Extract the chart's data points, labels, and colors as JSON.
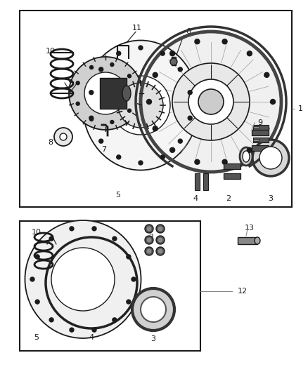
{
  "bg_color": "#ffffff",
  "line_color": "#1a1a1a",
  "gray_fill": "#e0e0e0",
  "dark_fill": "#555555",
  "fig_width": 4.38,
  "fig_height": 5.33,
  "dpi": 100
}
